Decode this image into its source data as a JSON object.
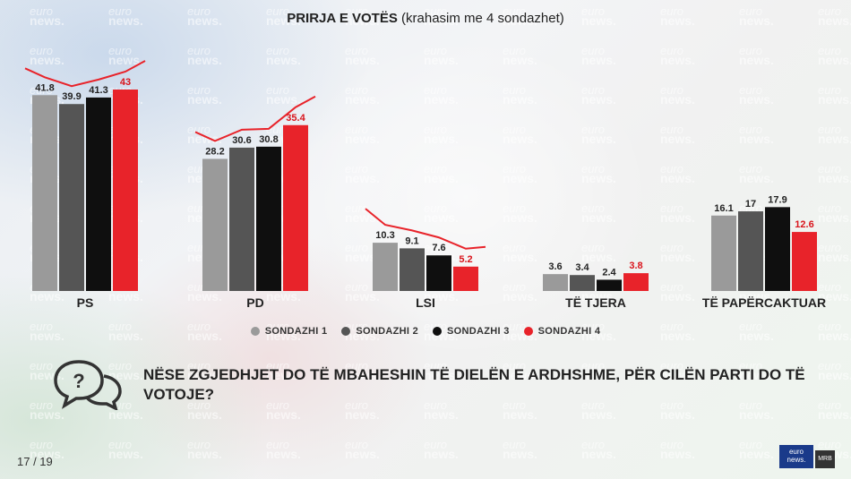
{
  "title": {
    "main": "PRIRJA E VOTËS",
    "sub": "(krahasim me 4 sondazhet)"
  },
  "colors": {
    "sondazhi1": "#9a9a9a",
    "sondazhi2": "#555555",
    "sondazhi3": "#0f0f0f",
    "sondazhi4": "#e8232a",
    "trend": "#e8232a"
  },
  "chart_data": {
    "type": "bar",
    "categories": [
      "PS",
      "PD",
      "LSI",
      "TË TJERA",
      "TË PAPËRCAKTUAR"
    ],
    "series": [
      {
        "name": "SONDAZHI 1",
        "values": [
          41.8,
          28.2,
          10.3,
          3.6,
          16.1
        ]
      },
      {
        "name": "SONDAZHI 2",
        "values": [
          39.9,
          30.6,
          9.1,
          3.4,
          17
        ]
      },
      {
        "name": "SONDAZHI 3",
        "values": [
          41.3,
          30.8,
          7.6,
          2.4,
          17.9
        ]
      },
      {
        "name": "SONDAZHI 4",
        "values": [
          43,
          35.4,
          5.2,
          3.8,
          12.6
        ]
      }
    ],
    "value_labels": [
      [
        "41.8",
        "39.9",
        "41.3",
        "43"
      ],
      [
        "28.2",
        "30.6",
        "30.8",
        "35.4"
      ],
      [
        "10.3",
        "9.1",
        "7.6",
        "5.2"
      ],
      [
        "3.6",
        "3.4",
        "2.4",
        "3.8"
      ],
      [
        "16.1",
        "17",
        "17.9",
        "12.6"
      ]
    ],
    "ylim": [
      0,
      45
    ],
    "grid": false,
    "legend_position": "bottom"
  },
  "question": {
    "icon": "question-bubbles-icon",
    "text": "NËSE ZGJEDHJET DO TË MBAHESHIN TË DIELËN E ARDHSHME, PËR CILËN PARTI DO TË VOTOJE?"
  },
  "watermark": {
    "line1": "euro",
    "line2": "news."
  },
  "page": {
    "indicator": "17 / 19"
  },
  "logo": {
    "top": "euro",
    "bottom": "news.",
    "partner": "MRB"
  }
}
